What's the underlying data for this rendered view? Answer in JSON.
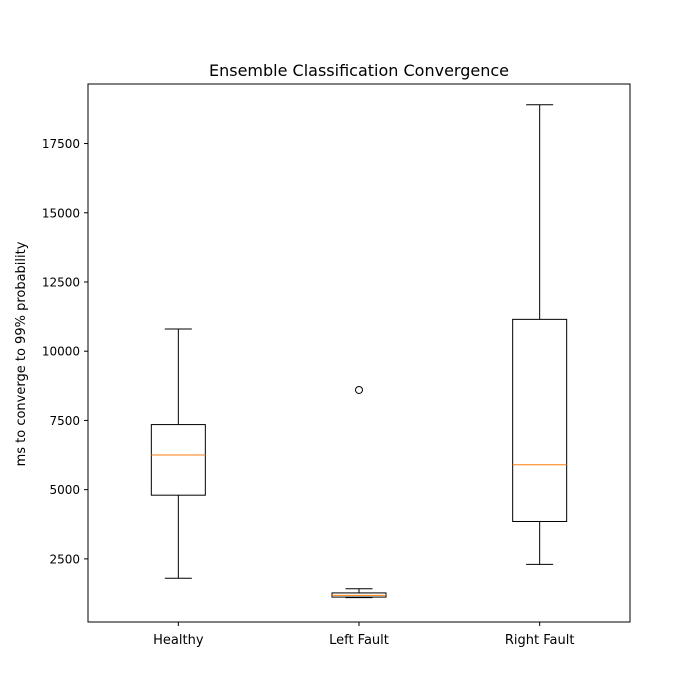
{
  "chart_data": {
    "type": "box",
    "title": "Ensemble Classification Convergence",
    "xlabel": "",
    "ylabel": "ms to converge to 99% probability",
    "ylim": [
      220,
      19650
    ],
    "yticks": [
      2500,
      5000,
      7500,
      10000,
      12500,
      15000,
      17500
    ],
    "yticklabels": [
      "2500",
      "5000",
      "7500",
      "10000",
      "12500",
      "15000",
      "17500"
    ],
    "grid": false,
    "categories": [
      "Healthy",
      "Left Fault",
      "Right Fault"
    ],
    "boxes": [
      {
        "category": "Healthy",
        "whisker_low": 1800,
        "q1": 4800,
        "median": 6250,
        "q3": 7350,
        "whisker_high": 10800,
        "outliers": []
      },
      {
        "category": "Left Fault",
        "whisker_low": 1100,
        "q1": 1120,
        "median": 1180,
        "q3": 1270,
        "whisker_high": 1420,
        "outliers": [
          8600
        ]
      },
      {
        "category": "Right Fault",
        "whisker_low": 2300,
        "q1": 3850,
        "median": 5900,
        "q3": 11150,
        "whisker_high": 18900,
        "outliers": []
      }
    ],
    "colors": {
      "box": "#000000",
      "median": "#ff7f0e",
      "axis": "#000000"
    }
  }
}
